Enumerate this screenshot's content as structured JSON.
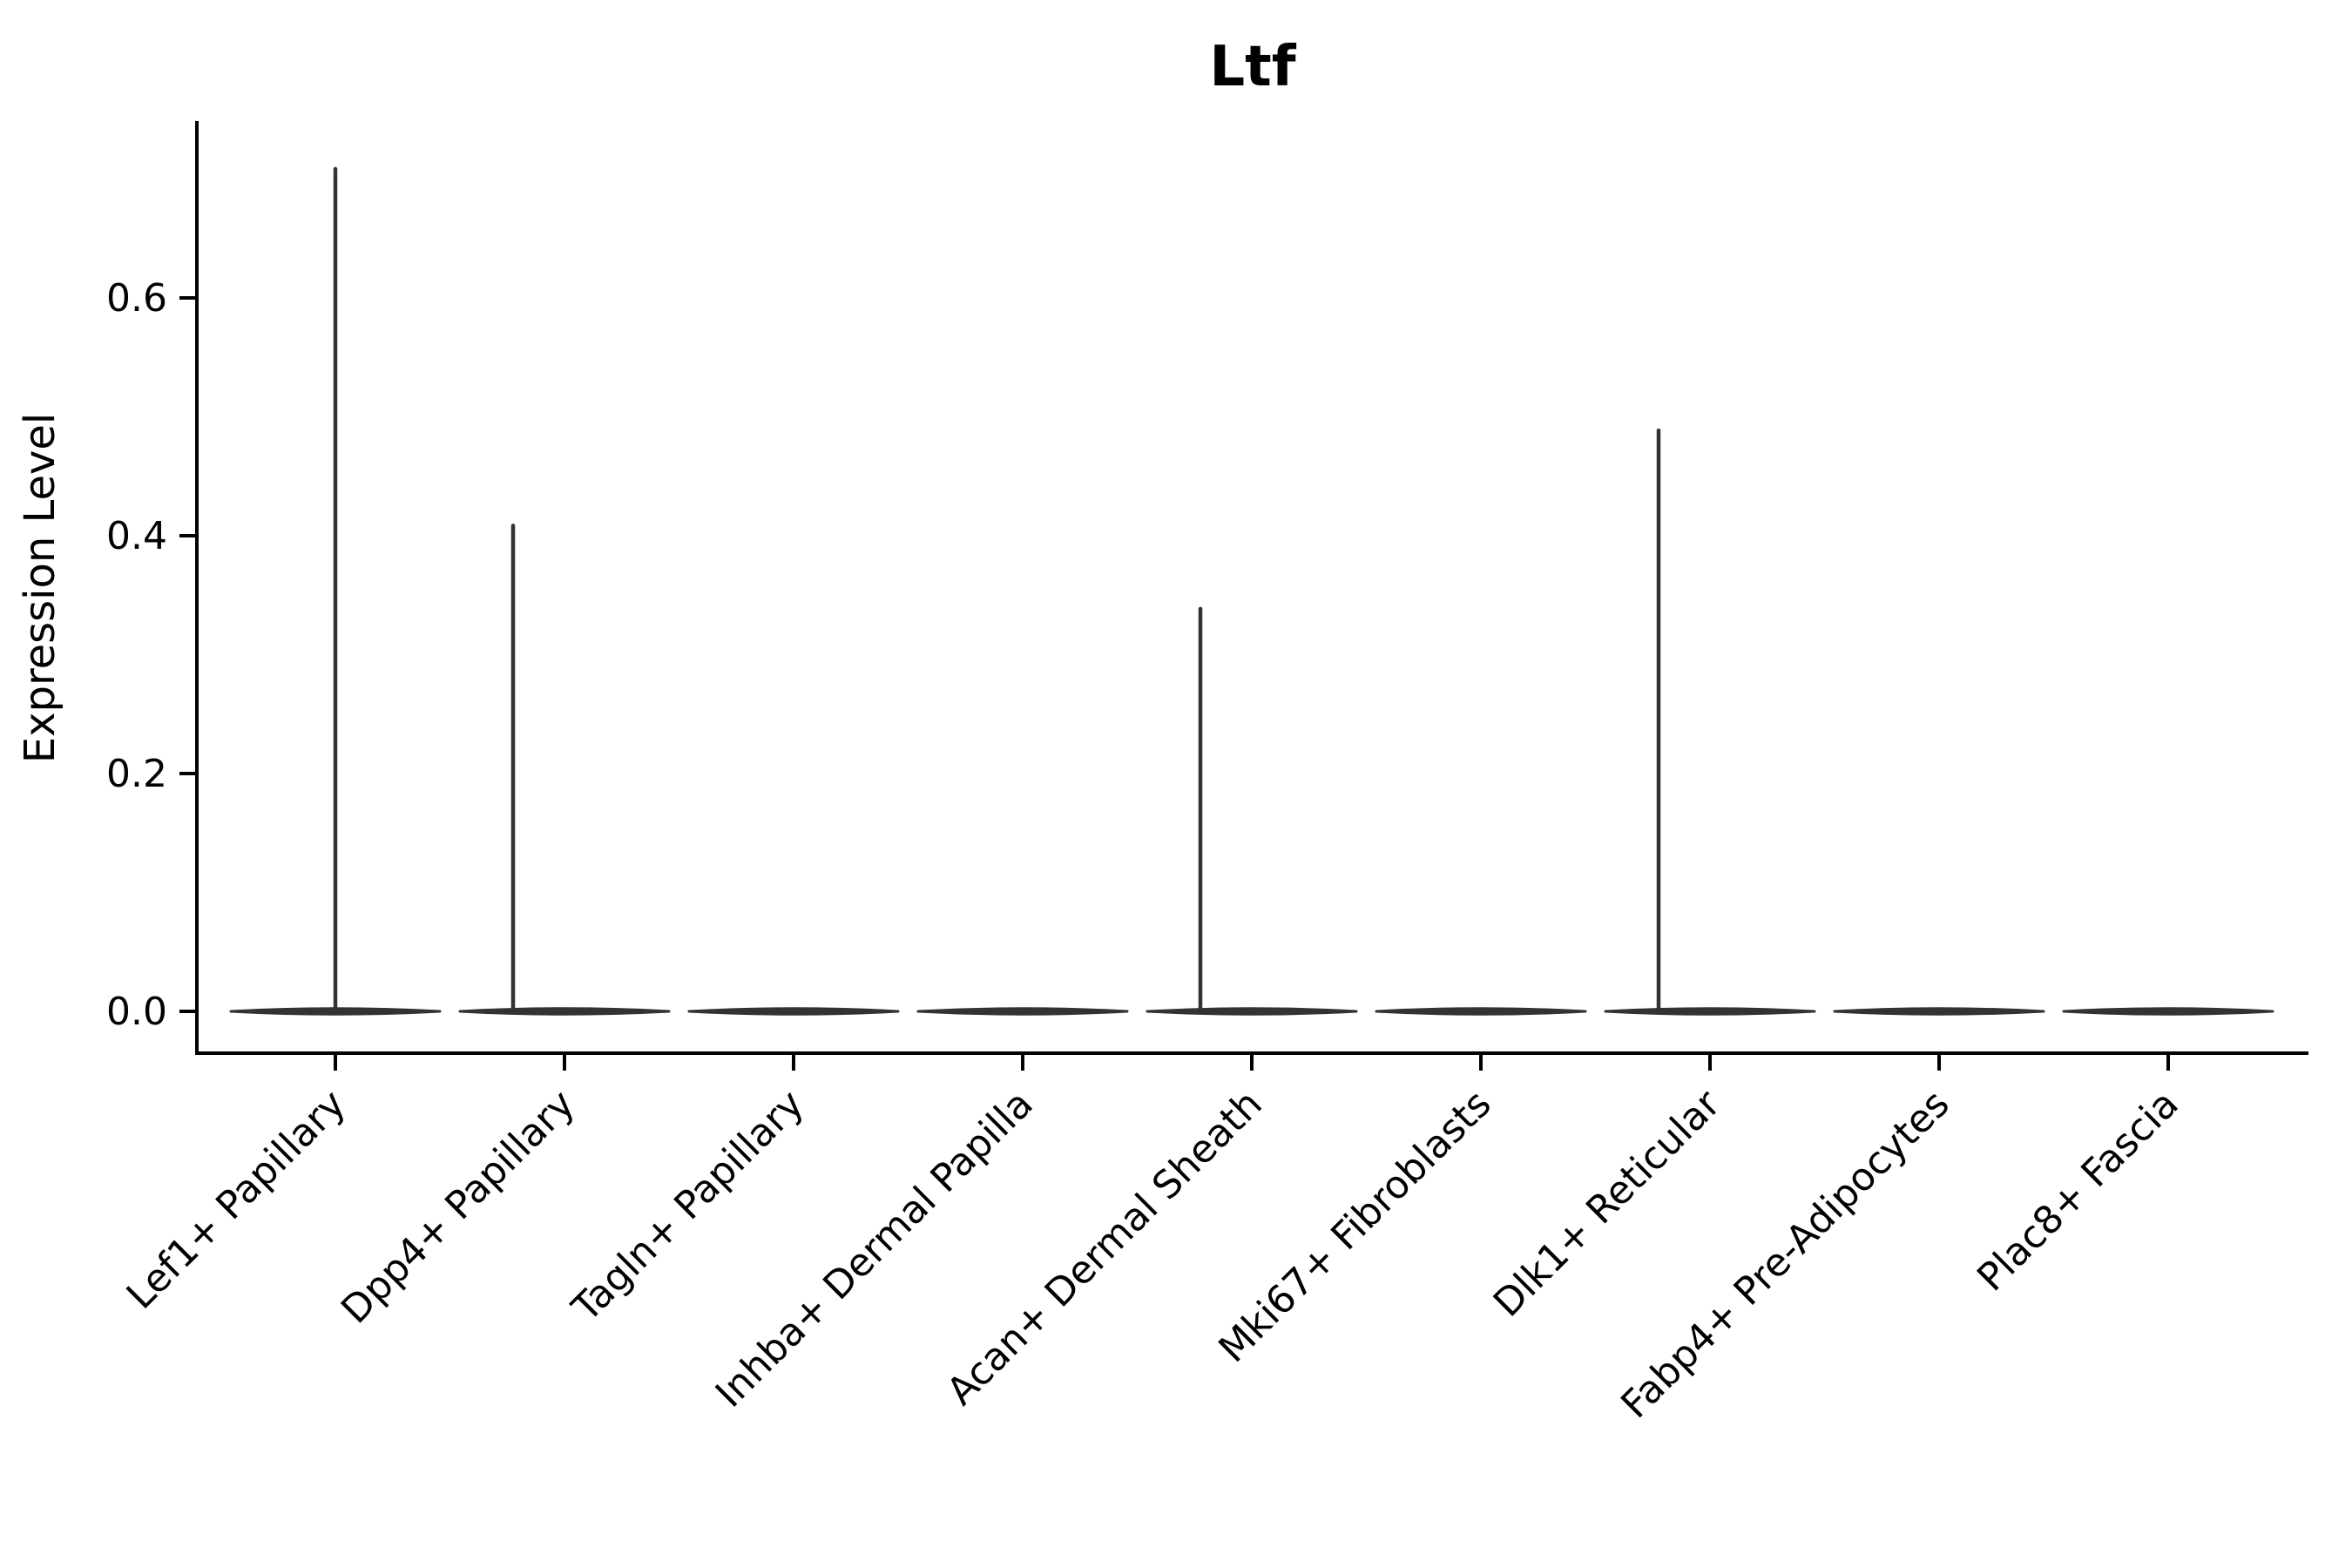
{
  "figure": {
    "title": "Ltf",
    "y_axis": {
      "label": "Expression Level",
      "tick_labels": [
        "0.0",
        "0.2",
        "0.4",
        "0.6"
      ]
    },
    "x_axis": {
      "tick_labels": [
        "Lef1+ Papillary",
        "Dpp4+ Papillary",
        "Tagln+ Papillary",
        "Inhba+ Dermal Papilla",
        "Acan+ Dermal Sheath",
        "Mki67+ Fibroblasts",
        "Dlk1+ Reticular",
        "Fabp4+ Pre-Adipocytes",
        "Plac8+ Fascia"
      ]
    }
  },
  "chart_data": {
    "type": "violin",
    "title": "Ltf",
    "xlabel": "",
    "ylabel": "Expression Level",
    "categories": [
      "Lef1+ Papillary",
      "Dpp4+ Papillary",
      "Tagln+ Papillary",
      "Inhba+ Dermal Papilla",
      "Acan+ Dermal Sheath",
      "Mki67+ Fibroblasts",
      "Dlk1+ Reticular",
      "Fabp4+ Pre-Adipocytes",
      "Plac8+ Fascia"
    ],
    "violins": [
      {
        "category": "Lef1+ Papillary",
        "dense_at": 0.0,
        "max": 0.71
      },
      {
        "category": "Dpp4+ Papillary",
        "dense_at": 0.0,
        "max": 0.41
      },
      {
        "category": "Tagln+ Papillary",
        "dense_at": 0.0,
        "max": 0.0
      },
      {
        "category": "Inhba+ Dermal Papilla",
        "dense_at": 0.0,
        "max": 0.0
      },
      {
        "category": "Acan+ Dermal Sheath",
        "dense_at": 0.0,
        "max": 0.34
      },
      {
        "category": "Mki67+ Fibroblasts",
        "dense_at": 0.0,
        "max": 0.0
      },
      {
        "category": "Dlk1+ Reticular",
        "dense_at": 0.0,
        "max": 0.49
      },
      {
        "category": "Fabp4+ Pre-Adipocytes",
        "dense_at": 0.0,
        "max": 0.0
      },
      {
        "category": "Plac8+ Fascia",
        "dense_at": 0.0,
        "max": 0.0
      }
    ],
    "yticks": [
      0.0,
      0.2,
      0.4,
      0.6
    ],
    "ylim": [
      -0.035,
      0.75
    ],
    "x_tick_rotation_deg": 45,
    "grid": false,
    "legend": "none",
    "colors": {
      "violin": "#333333",
      "axis": "#000000",
      "text": "#000000",
      "background": "#ffffff"
    }
  }
}
